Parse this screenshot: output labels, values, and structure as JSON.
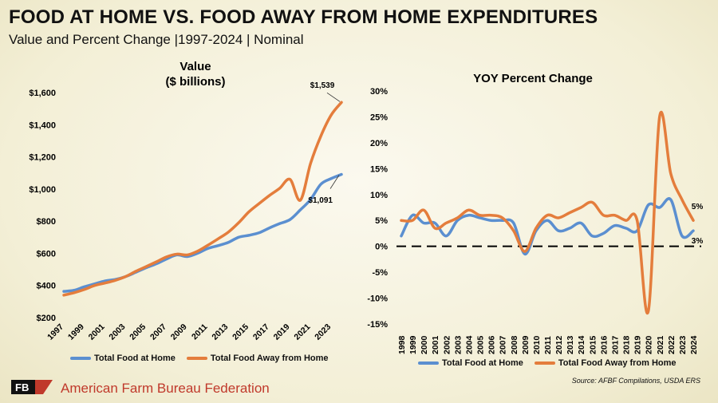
{
  "header": {
    "title": "FOOD AT HOME VS. FOOD AWAY FROM HOME EXPENDITURES",
    "subtitle": "Value and Percent Change |1997-2024 | Nominal"
  },
  "colors": {
    "home": "#5b8fd0",
    "away": "#e47d3c"
  },
  "chart_data": [
    {
      "type": "line",
      "title": "Value",
      "subtitle": "($ billions)",
      "x": [
        1997,
        1998,
        1999,
        2000,
        2001,
        2002,
        2003,
        2004,
        2005,
        2006,
        2007,
        2008,
        2009,
        2010,
        2011,
        2012,
        2013,
        2014,
        2015,
        2016,
        2017,
        2018,
        2019,
        2020,
        2021,
        2022,
        2023,
        2024
      ],
      "x_tick_labels": [
        "1997",
        "1999",
        "2001",
        "2003",
        "2005",
        "2007",
        "2009",
        "2011",
        "2013",
        "2015",
        "2017",
        "2019",
        "2021",
        "2023"
      ],
      "y_tick_labels": [
        "$200",
        "$400",
        "$600",
        "$800",
        "$1,000",
        "$1,200",
        "$1,400",
        "$1,600"
      ],
      "ylim": [
        200,
        1600
      ],
      "series": [
        {
          "name": "Total Food at Home",
          "color": "#5b8fd0",
          "values": [
            363,
            370,
            392,
            410,
            428,
            437,
            455,
            482,
            510,
            535,
            565,
            590,
            580,
            600,
            630,
            648,
            668,
            700,
            712,
            728,
            758,
            785,
            810,
            870,
            935,
            1030,
            1065,
            1091
          ]
        },
        {
          "name": "Total Food Away from Home",
          "color": "#e47d3c",
          "values": [
            340,
            355,
            375,
            400,
            415,
            432,
            455,
            488,
            517,
            547,
            578,
            595,
            590,
            613,
            650,
            690,
            732,
            790,
            858,
            910,
            960,
            1005,
            1060,
            930,
            1160,
            1330,
            1460,
            1539
          ]
        }
      ],
      "annotations": [
        "$1,539",
        "$1,091"
      ],
      "legend": "bottom"
    },
    {
      "type": "line",
      "title": "YOY Percent Change",
      "x": [
        1998,
        1999,
        2000,
        2001,
        2002,
        2003,
        2004,
        2005,
        2006,
        2007,
        2008,
        2009,
        2010,
        2011,
        2012,
        2013,
        2014,
        2015,
        2016,
        2017,
        2018,
        2019,
        2020,
        2021,
        2022,
        2023,
        2024
      ],
      "x_tick_labels": [
        "1998",
        "1999",
        "2000",
        "2001",
        "2002",
        "2003",
        "2004",
        "2005",
        "2006",
        "2007",
        "2008",
        "2009",
        "2010",
        "2011",
        "2012",
        "2013",
        "2014",
        "2015",
        "2016",
        "2017",
        "2018",
        "2019",
        "2020",
        "2021",
        "2022",
        "2023",
        "2024"
      ],
      "y_tick_labels": [
        "-15%",
        "-10%",
        "-5%",
        "0%",
        "5%",
        "10%",
        "15%",
        "20%",
        "25%",
        "30%"
      ],
      "ylim": [
        -15,
        30
      ],
      "series": [
        {
          "name": "Total Food at Home",
          "color": "#5b8fd0",
          "values": [
            2,
            6,
            4.5,
            4.5,
            2,
            5,
            6,
            5.5,
            5,
            5,
            4.5,
            -1.5,
            3,
            5,
            3,
            3.5,
            4.5,
            2,
            2.5,
            4,
            3.5,
            3,
            8,
            7.5,
            9,
            2,
            3
          ]
        },
        {
          "name": "Total Food Away from Home",
          "color": "#e47d3c",
          "values": [
            5,
            5,
            7,
            3.5,
            4.5,
            5.5,
            7,
            6,
            6,
            5.5,
            3,
            -1,
            3.5,
            6,
            5.5,
            6.5,
            7.5,
            8.5,
            6,
            6,
            5,
            5,
            -12.5,
            25,
            14,
            9,
            5
          ]
        }
      ],
      "annotations": [
        "5%",
        "3%"
      ],
      "legend": "bottom"
    }
  ],
  "footer": {
    "organization": "American Farm Bureau Federation",
    "logo_text": "FB",
    "source": "Source: AFBF Compilations, USDA ERS"
  }
}
